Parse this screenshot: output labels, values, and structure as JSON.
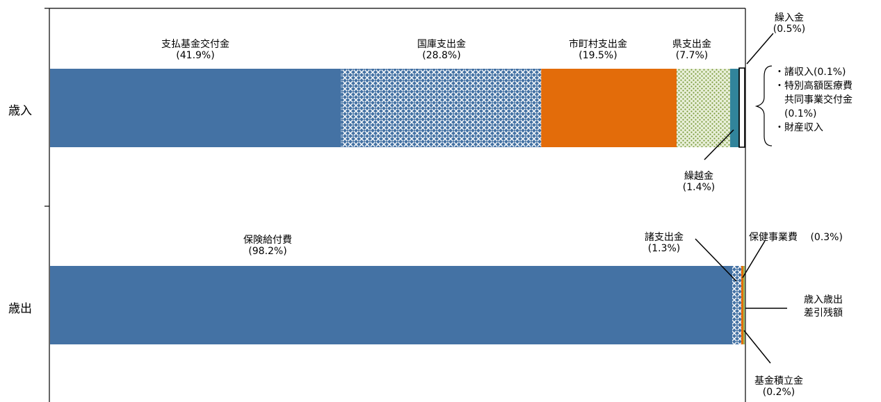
{
  "chart_data": {
    "type": "bar",
    "orientation": "horizontal",
    "stacked": true,
    "unit": "%",
    "categories": [
      "歳入",
      "歳出"
    ],
    "xlim": [
      0,
      100
    ],
    "grid": false,
    "legend": "none",
    "rows": [
      {
        "category": "歳入",
        "segments": [
          {
            "name": "支払基金交付金",
            "value": 41.9,
            "label": "(41.9%)",
            "color": "#4472a4",
            "pattern": "solid"
          },
          {
            "name": "国庫支出金",
            "value": 28.8,
            "label": "(28.8%)",
            "color": "#4472a4",
            "pattern": "lattice"
          },
          {
            "name": "市町村支出金",
            "value": 19.5,
            "label": "(19.5%)",
            "color": "#e36c0a",
            "pattern": "solid"
          },
          {
            "name": "県支出金",
            "value": 7.7,
            "label": "(7.7%)",
            "color": "#9bbb59",
            "pattern": "dots"
          },
          {
            "name": "繰越金",
            "value": 1.4,
            "label": "(1.4%)",
            "color": "#31849b",
            "pattern": "solid"
          },
          {
            "name": "繰入金",
            "value": 0.5,
            "label": "(0.5%)",
            "color": "#ffffff",
            "pattern": "solid"
          }
        ]
      },
      {
        "category": "歳出",
        "segments": [
          {
            "name": "保険給付費",
            "value": 98.2,
            "label": "(98.2%)",
            "color": "#4472a4",
            "pattern": "solid"
          },
          {
            "name": "諸支出金",
            "value": 1.3,
            "label": "(1.3%)",
            "color": "#4472a4",
            "pattern": "lattice"
          },
          {
            "name": "保健事業費",
            "value": 0.3,
            "label": "(0.3%)",
            "color": "#e36c0a",
            "pattern": "solid"
          },
          {
            "name": "基金積立金",
            "value": 0.2,
            "label": "(0.2%)",
            "color": "#9bbb59",
            "pattern": "solid"
          }
        ]
      }
    ],
    "annotations": {
      "revenue_others": [
        "・諸収入(0.1%)",
        "・特別高額医療費",
        "共同事業交付金",
        "(0.1%)",
        "・財産収入"
      ],
      "expenditure_balance": [
        "歳入歳出",
        "差引残額"
      ]
    }
  }
}
